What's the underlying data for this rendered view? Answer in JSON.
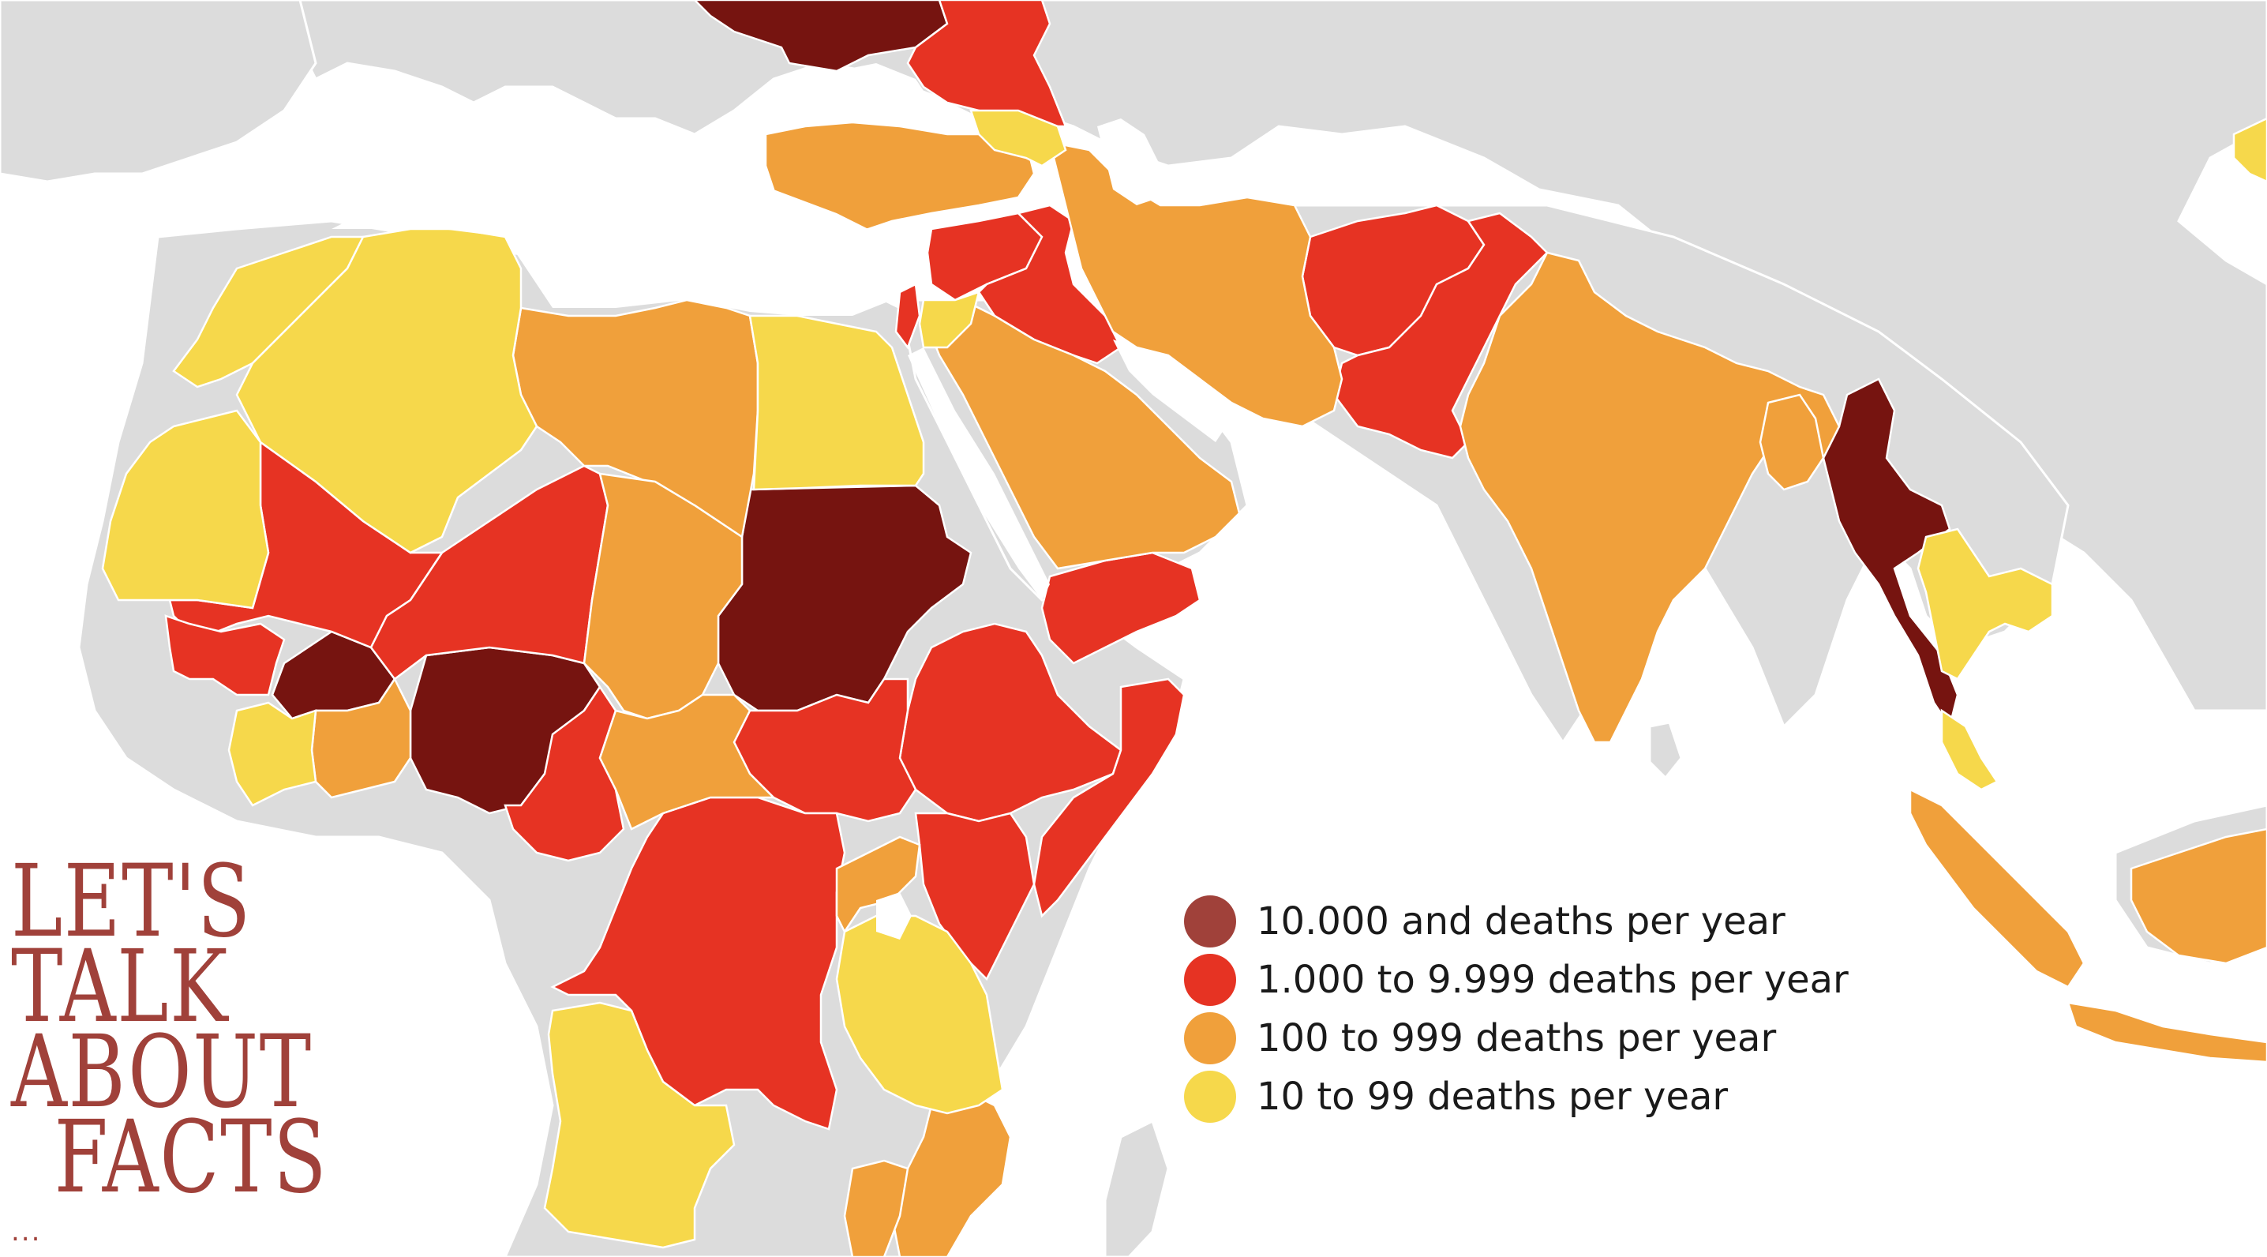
{
  "map": {
    "colors": {
      "land": "#dcdcdc",
      "level_10000": "#761410",
      "level_1000": "#e63323",
      "level_100": "#f0a03b",
      "level_10": "#f6d84b"
    }
  },
  "legend": {
    "items": [
      {
        "label": "10.000 and deaths per year",
        "color": "#a0413a"
      },
      {
        "label": "1.000 to 9.999 deaths per year",
        "color": "#e63323"
      },
      {
        "label": "100 to 999 deaths per year",
        "color": "#f0a03b"
      },
      {
        "label": "10 to 99 deaths per year",
        "color": "#f6d84b"
      }
    ]
  },
  "brand": {
    "line1": "LET'S",
    "line2": "TALK",
    "line3": "ABOUT",
    "line4": "FACTS",
    "ellipsis": "..."
  }
}
